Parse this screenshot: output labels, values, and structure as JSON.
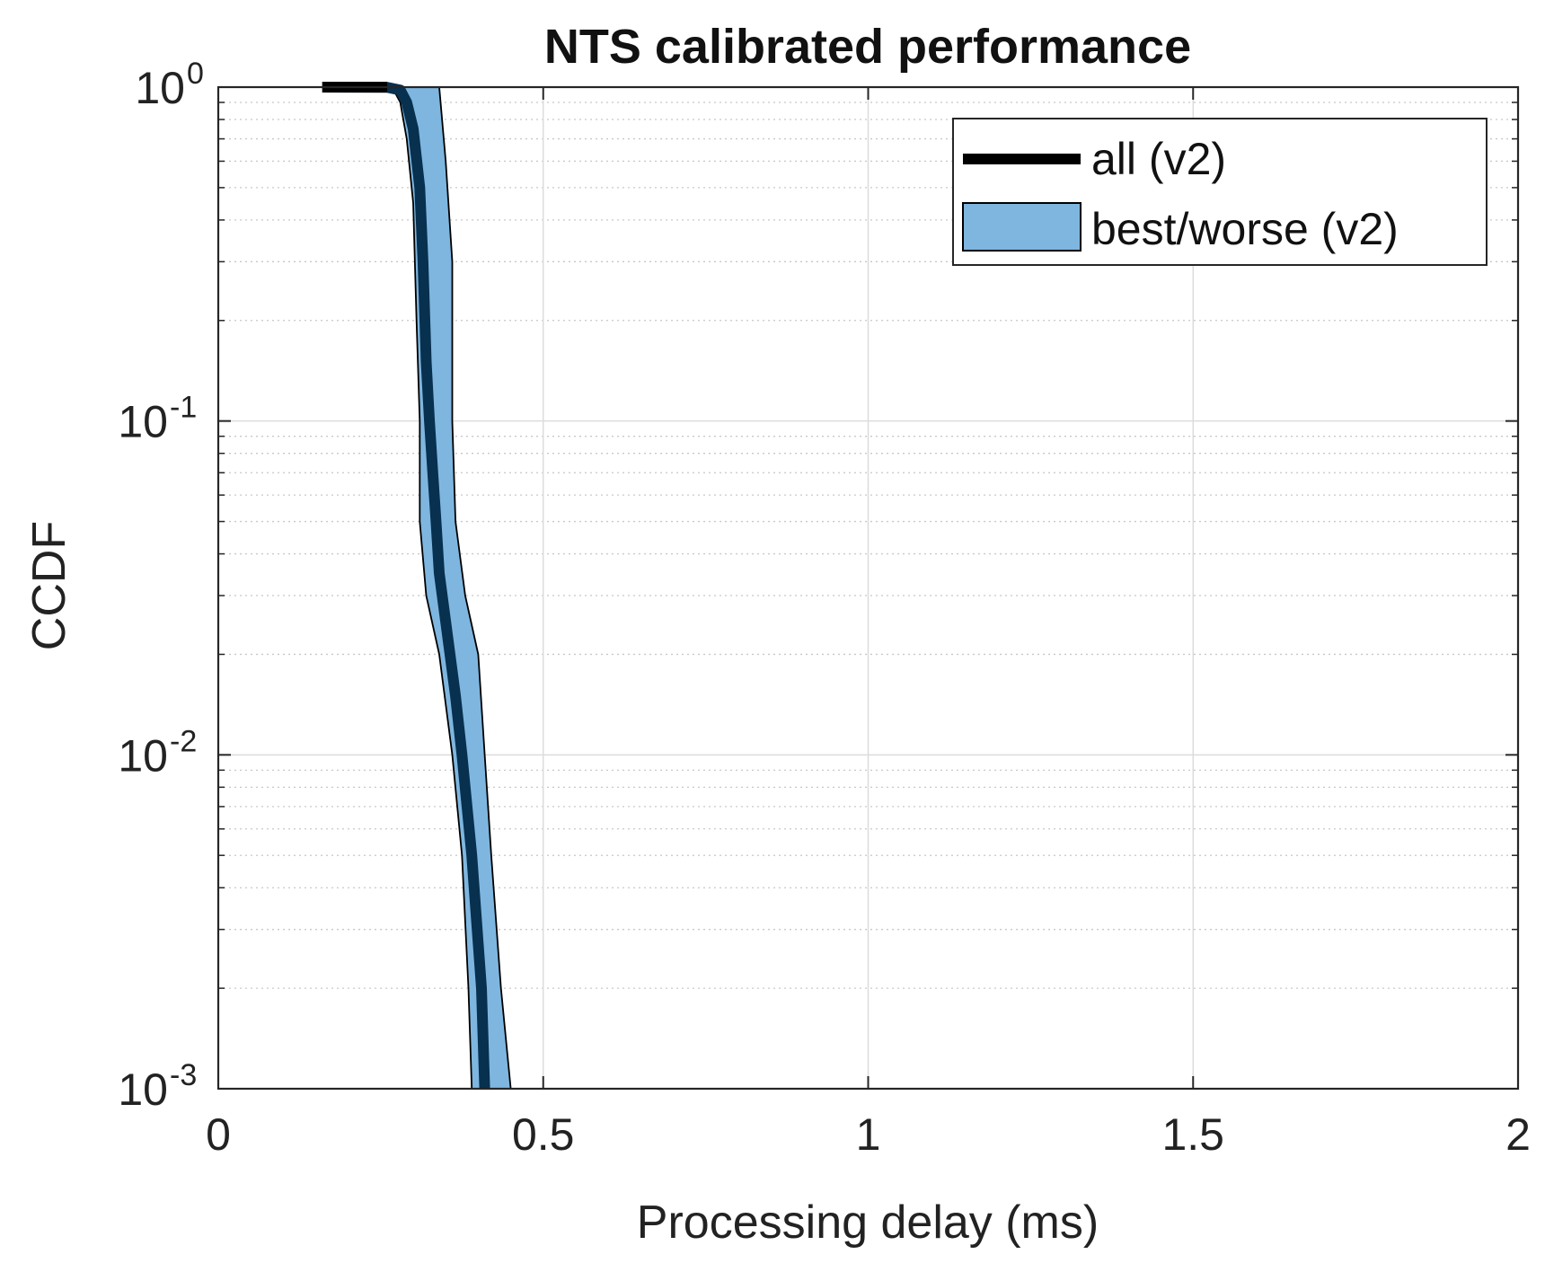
{
  "chart_data": {
    "type": "line",
    "title": "NTS calibrated performance",
    "xlabel": "Processing delay (ms)",
    "ylabel": "CCDF",
    "xlim": [
      0,
      2
    ],
    "ylim": [
      0.001,
      1
    ],
    "yscale": "log",
    "grid": true,
    "legend_position": "top-right",
    "x_ticks": [
      {
        "value": 0,
        "label": "0"
      },
      {
        "value": 0.5,
        "label": "0.5"
      },
      {
        "value": 1,
        "label": "1"
      },
      {
        "value": 1.5,
        "label": "1.5"
      },
      {
        "value": 2,
        "label": "2"
      }
    ],
    "y_ticks": [
      {
        "value": 1,
        "base": "10",
        "exp": "0"
      },
      {
        "value": 0.1,
        "base": "10",
        "exp": "-1"
      },
      {
        "value": 0.01,
        "base": "10",
        "exp": "-2"
      },
      {
        "value": 0.001,
        "base": "10",
        "exp": "-3"
      }
    ],
    "series": [
      {
        "name": "all (v2)",
        "kind": "line",
        "color": "#08304f",
        "legend_color": "#000000",
        "points": [
          [
            0.16,
            1.0
          ],
          [
            0.26,
            0.998
          ],
          [
            0.28,
            0.98
          ],
          [
            0.29,
            0.9
          ],
          [
            0.3,
            0.75
          ],
          [
            0.31,
            0.5
          ],
          [
            0.315,
            0.3
          ],
          [
            0.32,
            0.15
          ],
          [
            0.325,
            0.1
          ],
          [
            0.33,
            0.07
          ],
          [
            0.335,
            0.05
          ],
          [
            0.34,
            0.035
          ],
          [
            0.35,
            0.025
          ],
          [
            0.365,
            0.015
          ],
          [
            0.375,
            0.01
          ],
          [
            0.39,
            0.005
          ],
          [
            0.405,
            0.002
          ],
          [
            0.41,
            0.001
          ]
        ]
      },
      {
        "name": "best/worse (v2)",
        "kind": "band",
        "color": "#7eb6df",
        "edge_color": "#000000",
        "lower": [
          [
            0.16,
            1.0
          ],
          [
            0.25,
            1.0
          ],
          [
            0.27,
            0.98
          ],
          [
            0.28,
            0.9
          ],
          [
            0.29,
            0.7
          ],
          [
            0.3,
            0.45
          ],
          [
            0.305,
            0.2
          ],
          [
            0.31,
            0.1
          ],
          [
            0.31,
            0.05
          ],
          [
            0.32,
            0.03
          ],
          [
            0.34,
            0.02
          ],
          [
            0.36,
            0.01
          ],
          [
            0.375,
            0.005
          ],
          [
            0.385,
            0.002
          ],
          [
            0.39,
            0.001
          ]
        ],
        "upper": [
          [
            0.16,
            1.0
          ],
          [
            0.34,
            1.0
          ],
          [
            0.35,
            0.6
          ],
          [
            0.36,
            0.3
          ],
          [
            0.36,
            0.1
          ],
          [
            0.365,
            0.05
          ],
          [
            0.38,
            0.03
          ],
          [
            0.4,
            0.02
          ],
          [
            0.41,
            0.01
          ],
          [
            0.42,
            0.005
          ],
          [
            0.435,
            0.002
          ],
          [
            0.45,
            0.001
          ]
        ]
      }
    ]
  }
}
